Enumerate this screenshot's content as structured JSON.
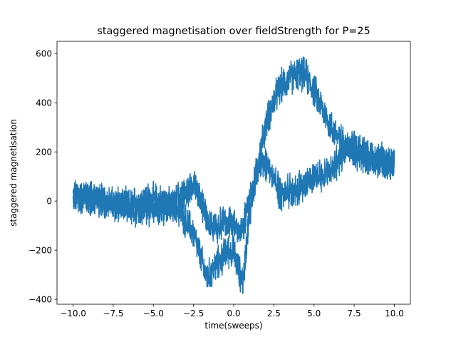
{
  "chart_data": {
    "type": "line",
    "title": "staggered magnetisation over fieldStrength for P=25",
    "xlabel": "time(sweeps)",
    "ylabel": "staggered magnetisation",
    "xlim": [
      -11.0,
      11.0
    ],
    "ylim": [
      -420,
      650
    ],
    "xticks": [
      -10.0,
      -7.5,
      -5.0,
      -2.5,
      0.0,
      2.5,
      5.0,
      7.5,
      10.0
    ],
    "xtick_labels": [
      "−10.0",
      "−7.5",
      "−5.0",
      "−2.5",
      "0.0",
      "2.5",
      "5.0",
      "7.5",
      "10.0"
    ],
    "yticks": [
      -400,
      -200,
      0,
      200,
      400,
      600
    ],
    "ytick_labels": [
      "−400",
      "−200",
      "0",
      "200",
      "400",
      "600"
    ],
    "grid": false,
    "legend": false,
    "series": [
      {
        "color": "#1f77b4",
        "noise": 55,
        "x": [
          -10.0,
          -8.5,
          -7.5,
          -6.5,
          -5.5,
          -4.5,
          -3.5,
          -2.5,
          -2.2,
          -1.8,
          -1.6,
          -1.2,
          -0.8,
          -0.4,
          0.0,
          0.3,
          0.6,
          0.8,
          1.2,
          1.6,
          2.0,
          2.5,
          3.0,
          3.5,
          4.0,
          4.5,
          5.0,
          5.5,
          6.0,
          6.5,
          7.0,
          7.5,
          8.0,
          8.5,
          9.0,
          9.5,
          10.0
        ],
        "y": [
          20,
          10,
          -10,
          -20,
          10,
          0,
          -30,
          -130,
          -200,
          -290,
          -310,
          -270,
          -240,
          -200,
          -210,
          -280,
          -330,
          -160,
          40,
          180,
          310,
          410,
          470,
          500,
          520,
          510,
          450,
          380,
          310,
          260,
          220,
          200,
          180,
          170,
          160,
          150,
          140
        ]
      },
      {
        "color": "#1f77b4",
        "noise": 55,
        "x": [
          10.0,
          9.5,
          9.0,
          8.5,
          8.0,
          7.5,
          7.0,
          6.5,
          6.0,
          5.5,
          5.0,
          4.5,
          4.0,
          3.5,
          3.0,
          2.5,
          2.0,
          1.5,
          1.0,
          0.6,
          0.3,
          0.0,
          -0.3,
          -0.6,
          -1.0,
          -1.4,
          -1.8,
          -2.2,
          -2.6,
          -3.0,
          -4.0,
          -5.0,
          -6.0,
          -7.0,
          -8.0,
          -9.0,
          -10.0
        ],
        "y": [
          150,
          160,
          170,
          180,
          200,
          230,
          210,
          160,
          130,
          110,
          90,
          70,
          50,
          40,
          20,
          90,
          160,
          150,
          0,
          -100,
          -130,
          -100,
          -80,
          -60,
          -110,
          -100,
          -50,
          20,
          60,
          40,
          -20,
          -30,
          -40,
          -20,
          0,
          10,
          20
        ]
      }
    ]
  }
}
